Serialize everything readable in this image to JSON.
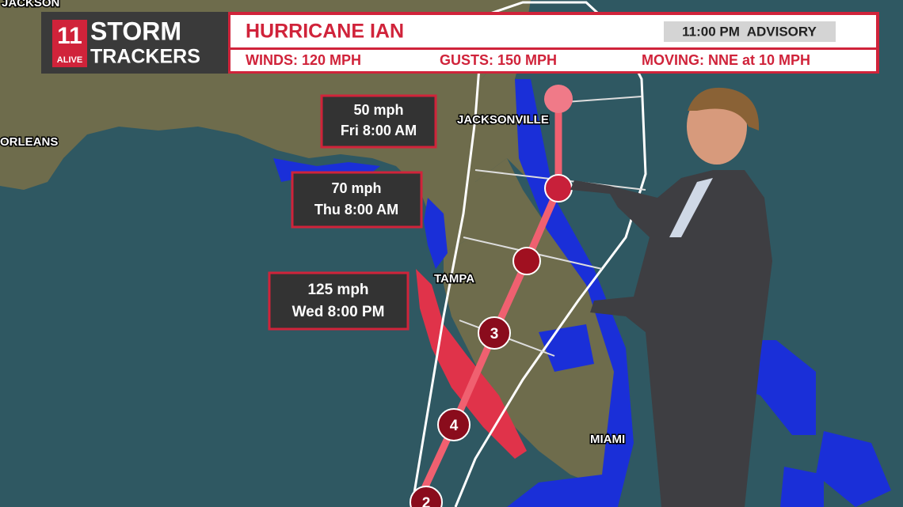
{
  "logo": {
    "channel": "11",
    "brand": "ALIVE",
    "line1": "STORM",
    "line2": "TRACKERS"
  },
  "header": {
    "title": "HURRICANE IAN",
    "advisory": "11:00 PM  ADVISORY",
    "stats": [
      "WINDS: 120 MPH",
      "GUSTS: 150 MPH",
      "MOVING: NNE at 10 MPH"
    ]
  },
  "callouts": [
    {
      "speed": "50 mph",
      "time": "Fri 8:00 AM"
    },
    {
      "speed": "70 mph",
      "time": "Thu 8:00 AM"
    },
    {
      "speed": "125 mph",
      "time": "Wed 8:00 PM"
    }
  ],
  "cities": [
    "JACKSON",
    "ORLEANS",
    "JACKSONVILLE",
    "TAMPA",
    "MIAMI"
  ],
  "storm_markers": [
    "3",
    "4",
    "2"
  ]
}
